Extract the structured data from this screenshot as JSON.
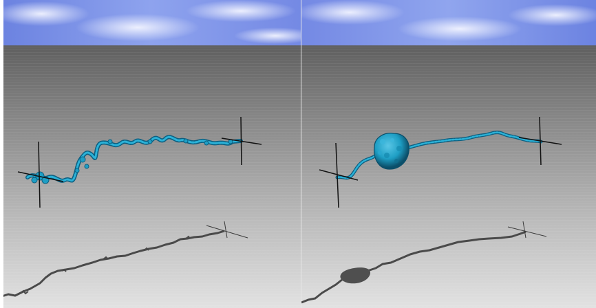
{
  "scene": {
    "panels": [
      {
        "id": "left",
        "bead": "none"
      },
      {
        "id": "right",
        "bead": "globule"
      }
    ],
    "colors": {
      "sky_light": "#e8ecff",
      "sky_mid": "#8ea4ef",
      "sky_deep": "#4a63d6",
      "floor_top": "#636363",
      "floor_bottom": "#dadada",
      "strand": "#1e9ec4",
      "strand_dark": "#0c5f80",
      "shadow": "#4d4d4d",
      "axis": "#111111"
    }
  }
}
